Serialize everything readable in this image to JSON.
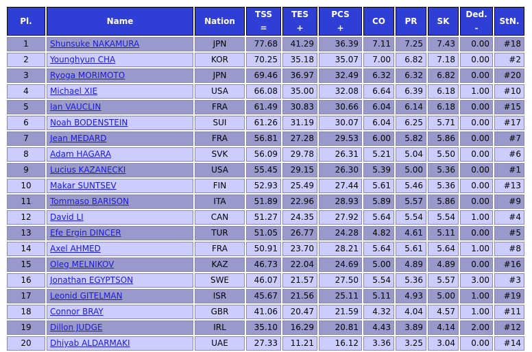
{
  "headers": {
    "pl": "Pl.",
    "name": "Name",
    "nation": "Nation",
    "tss": "TSS",
    "tss_sub": "=",
    "tes": "TES",
    "tes_sub": "+",
    "pcs": "PCS",
    "pcs_sub": "+",
    "co": "CO",
    "pr": "PR",
    "sk": "SK",
    "ded": "Ded.",
    "ded_sub": "-",
    "stn": "StN."
  },
  "rows": [
    {
      "pl": "1",
      "name": "Shunsuke NAKAMURA",
      "nation": "JPN",
      "tss": "77.68",
      "tes": "41.29",
      "pcs": "36.39",
      "co": "7.11",
      "pr": "7.25",
      "sk": "7.43",
      "ded": "0.00",
      "stn": "#18"
    },
    {
      "pl": "2",
      "name": "Younghyun CHA",
      "nation": "KOR",
      "tss": "70.25",
      "tes": "35.18",
      "pcs": "35.07",
      "co": "7.00",
      "pr": "6.82",
      "sk": "7.18",
      "ded": "0.00",
      "stn": "#2"
    },
    {
      "pl": "3",
      "name": "Ryoga MORIMOTO",
      "nation": "JPN",
      "tss": "69.46",
      "tes": "36.97",
      "pcs": "32.49",
      "co": "6.32",
      "pr": "6.32",
      "sk": "6.82",
      "ded": "0.00",
      "stn": "#20"
    },
    {
      "pl": "4",
      "name": "Michael XIE",
      "nation": "USA",
      "tss": "66.08",
      "tes": "35.00",
      "pcs": "32.08",
      "co": "6.64",
      "pr": "6.39",
      "sk": "6.18",
      "ded": "1.00",
      "stn": "#10"
    },
    {
      "pl": "5",
      "name": "Ian VAUCLIN",
      "nation": "FRA",
      "tss": "61.49",
      "tes": "30.83",
      "pcs": "30.66",
      "co": "6.04",
      "pr": "6.14",
      "sk": "6.18",
      "ded": "0.00",
      "stn": "#15"
    },
    {
      "pl": "6",
      "name": "Noah BODENSTEIN",
      "nation": "SUI",
      "tss": "61.26",
      "tes": "31.19",
      "pcs": "30.07",
      "co": "6.04",
      "pr": "6.25",
      "sk": "5.71",
      "ded": "0.00",
      "stn": "#17"
    },
    {
      "pl": "7",
      "name": "Jean MEDARD",
      "nation": "FRA",
      "tss": "56.81",
      "tes": "27.28",
      "pcs": "29.53",
      "co": "6.00",
      "pr": "5.82",
      "sk": "5.86",
      "ded": "0.00",
      "stn": "#7"
    },
    {
      "pl": "8",
      "name": "Adam HAGARA",
      "nation": "SVK",
      "tss": "56.09",
      "tes": "29.78",
      "pcs": "26.31",
      "co": "5.21",
      "pr": "5.04",
      "sk": "5.50",
      "ded": "0.00",
      "stn": "#6"
    },
    {
      "pl": "9",
      "name": "Lucius KAZANECKI",
      "nation": "USA",
      "tss": "55.45",
      "tes": "29.15",
      "pcs": "26.30",
      "co": "5.39",
      "pr": "5.00",
      "sk": "5.36",
      "ded": "0.00",
      "stn": "#1"
    },
    {
      "pl": "10",
      "name": "Makar SUNTSEV",
      "nation": "FIN",
      "tss": "52.93",
      "tes": "25.49",
      "pcs": "27.44",
      "co": "5.61",
      "pr": "5.46",
      "sk": "5.36",
      "ded": "0.00",
      "stn": "#13"
    },
    {
      "pl": "11",
      "name": "Tommaso BARISON",
      "nation": "ITA",
      "tss": "51.89",
      "tes": "22.96",
      "pcs": "28.93",
      "co": "5.89",
      "pr": "5.57",
      "sk": "5.86",
      "ded": "0.00",
      "stn": "#9"
    },
    {
      "pl": "12",
      "name": "David LI",
      "nation": "CAN",
      "tss": "51.27",
      "tes": "24.35",
      "pcs": "27.92",
      "co": "5.64",
      "pr": "5.54",
      "sk": "5.54",
      "ded": "1.00",
      "stn": "#4"
    },
    {
      "pl": "13",
      "name": "Efe Ergin DINCER",
      "nation": "TUR",
      "tss": "51.05",
      "tes": "26.77",
      "pcs": "24.28",
      "co": "4.82",
      "pr": "4.61",
      "sk": "5.11",
      "ded": "0.00",
      "stn": "#5"
    },
    {
      "pl": "14",
      "name": "Axel AHMED",
      "nation": "FRA",
      "tss": "50.91",
      "tes": "23.70",
      "pcs": "28.21",
      "co": "5.64",
      "pr": "5.61",
      "sk": "5.64",
      "ded": "1.00",
      "stn": "#8"
    },
    {
      "pl": "15",
      "name": "Oleg MELNIKOV",
      "nation": "KAZ",
      "tss": "46.73",
      "tes": "22.04",
      "pcs": "24.69",
      "co": "5.00",
      "pr": "4.89",
      "sk": "4.89",
      "ded": "0.00",
      "stn": "#16"
    },
    {
      "pl": "16",
      "name": "Jonathan EGYPTSON",
      "nation": "SWE",
      "tss": "46.07",
      "tes": "21.57",
      "pcs": "27.50",
      "co": "5.54",
      "pr": "5.36",
      "sk": "5.57",
      "ded": "3.00",
      "stn": "#3"
    },
    {
      "pl": "17",
      "name": "Leonid GITELMAN",
      "nation": "ISR",
      "tss": "45.67",
      "tes": "21.56",
      "pcs": "25.11",
      "co": "5.11",
      "pr": "4.93",
      "sk": "5.00",
      "ded": "1.00",
      "stn": "#19"
    },
    {
      "pl": "18",
      "name": "Connor BRAY",
      "nation": "GBR",
      "tss": "41.06",
      "tes": "20.47",
      "pcs": "21.59",
      "co": "4.32",
      "pr": "4.04",
      "sk": "4.57",
      "ded": "1.00",
      "stn": "#11"
    },
    {
      "pl": "19",
      "name": "Dillon JUDGE",
      "nation": "IRL",
      "tss": "35.10",
      "tes": "16.29",
      "pcs": "20.81",
      "co": "4.43",
      "pr": "3.89",
      "sk": "4.14",
      "ded": "2.00",
      "stn": "#12"
    },
    {
      "pl": "20",
      "name": "Dhiyab ALDARMAKI",
      "nation": "UAE",
      "tss": "27.33",
      "tes": "11.21",
      "pcs": "16.12",
      "co": "3.36",
      "pr": "3.25",
      "sk": "3.04",
      "ded": "0.00",
      "stn": "#14"
    }
  ],
  "colors": {
    "header_bg": "#2f3ed4",
    "row_dark": "#9999cc",
    "row_light": "#ccccff",
    "link": "#1a1adb"
  }
}
